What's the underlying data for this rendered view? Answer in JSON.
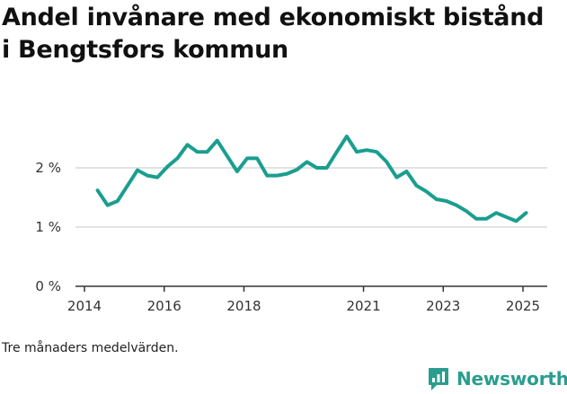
{
  "chart_data": {
    "type": "line",
    "title": "Andel invånare med ekonomiskt bistånd i Bengtsfors kommun",
    "xlabel": "",
    "ylabel": "",
    "ylim": [
      0,
      2.8
    ],
    "xlim": [
      2014.0,
      2025.5
    ],
    "yticks": [
      0,
      1,
      2
    ],
    "ytick_labels": [
      "0 %",
      "1 %",
      "2 %"
    ],
    "xticks": [
      2014,
      2016,
      2018,
      2021,
      2023,
      2025
    ],
    "xtick_labels": [
      "2014",
      "2016",
      "2018",
      "2021",
      "2023",
      "2025"
    ],
    "grid": true,
    "line_color": "#1a9e8f",
    "series": [
      {
        "points": [
          [
            2014.33,
            1.62
          ],
          [
            2014.58,
            1.37
          ],
          [
            2014.83,
            1.44
          ],
          [
            2015.08,
            1.7
          ],
          [
            2015.33,
            1.96
          ],
          [
            2015.58,
            1.87
          ],
          [
            2015.83,
            1.84
          ],
          [
            2016.08,
            2.02
          ],
          [
            2016.33,
            2.16
          ],
          [
            2016.58,
            2.39
          ],
          [
            2016.83,
            2.27
          ],
          [
            2017.08,
            2.27
          ],
          [
            2017.33,
            2.46
          ],
          [
            2017.58,
            2.2
          ],
          [
            2017.83,
            1.94
          ],
          [
            2018.08,
            2.16
          ],
          [
            2018.33,
            2.16
          ],
          [
            2018.58,
            1.87
          ],
          [
            2018.83,
            1.87
          ],
          [
            2019.08,
            1.9
          ],
          [
            2019.33,
            1.97
          ],
          [
            2019.58,
            2.1
          ],
          [
            2019.83,
            2.0
          ],
          [
            2020.08,
            2.0
          ],
          [
            2020.33,
            2.27
          ],
          [
            2020.58,
            2.53
          ],
          [
            2020.83,
            2.27
          ],
          [
            2021.08,
            2.3
          ],
          [
            2021.33,
            2.27
          ],
          [
            2021.58,
            2.1
          ],
          [
            2021.83,
            1.84
          ],
          [
            2022.08,
            1.94
          ],
          [
            2022.33,
            1.7
          ],
          [
            2022.58,
            1.6
          ],
          [
            2022.83,
            1.47
          ],
          [
            2023.08,
            1.44
          ],
          [
            2023.33,
            1.37
          ],
          [
            2023.58,
            1.27
          ],
          [
            2023.83,
            1.14
          ],
          [
            2024.08,
            1.14
          ],
          [
            2024.33,
            1.24
          ],
          [
            2024.58,
            1.17
          ],
          [
            2024.83,
            1.1
          ],
          [
            2025.08,
            1.24
          ]
        ]
      }
    ]
  },
  "footer": {
    "note": "Tre månaders medelvärden.",
    "brand": "Newsworthy"
  },
  "colors": {
    "brand": "#2a9d8f",
    "grid": "#d9d9d9",
    "axis": "#333333"
  }
}
